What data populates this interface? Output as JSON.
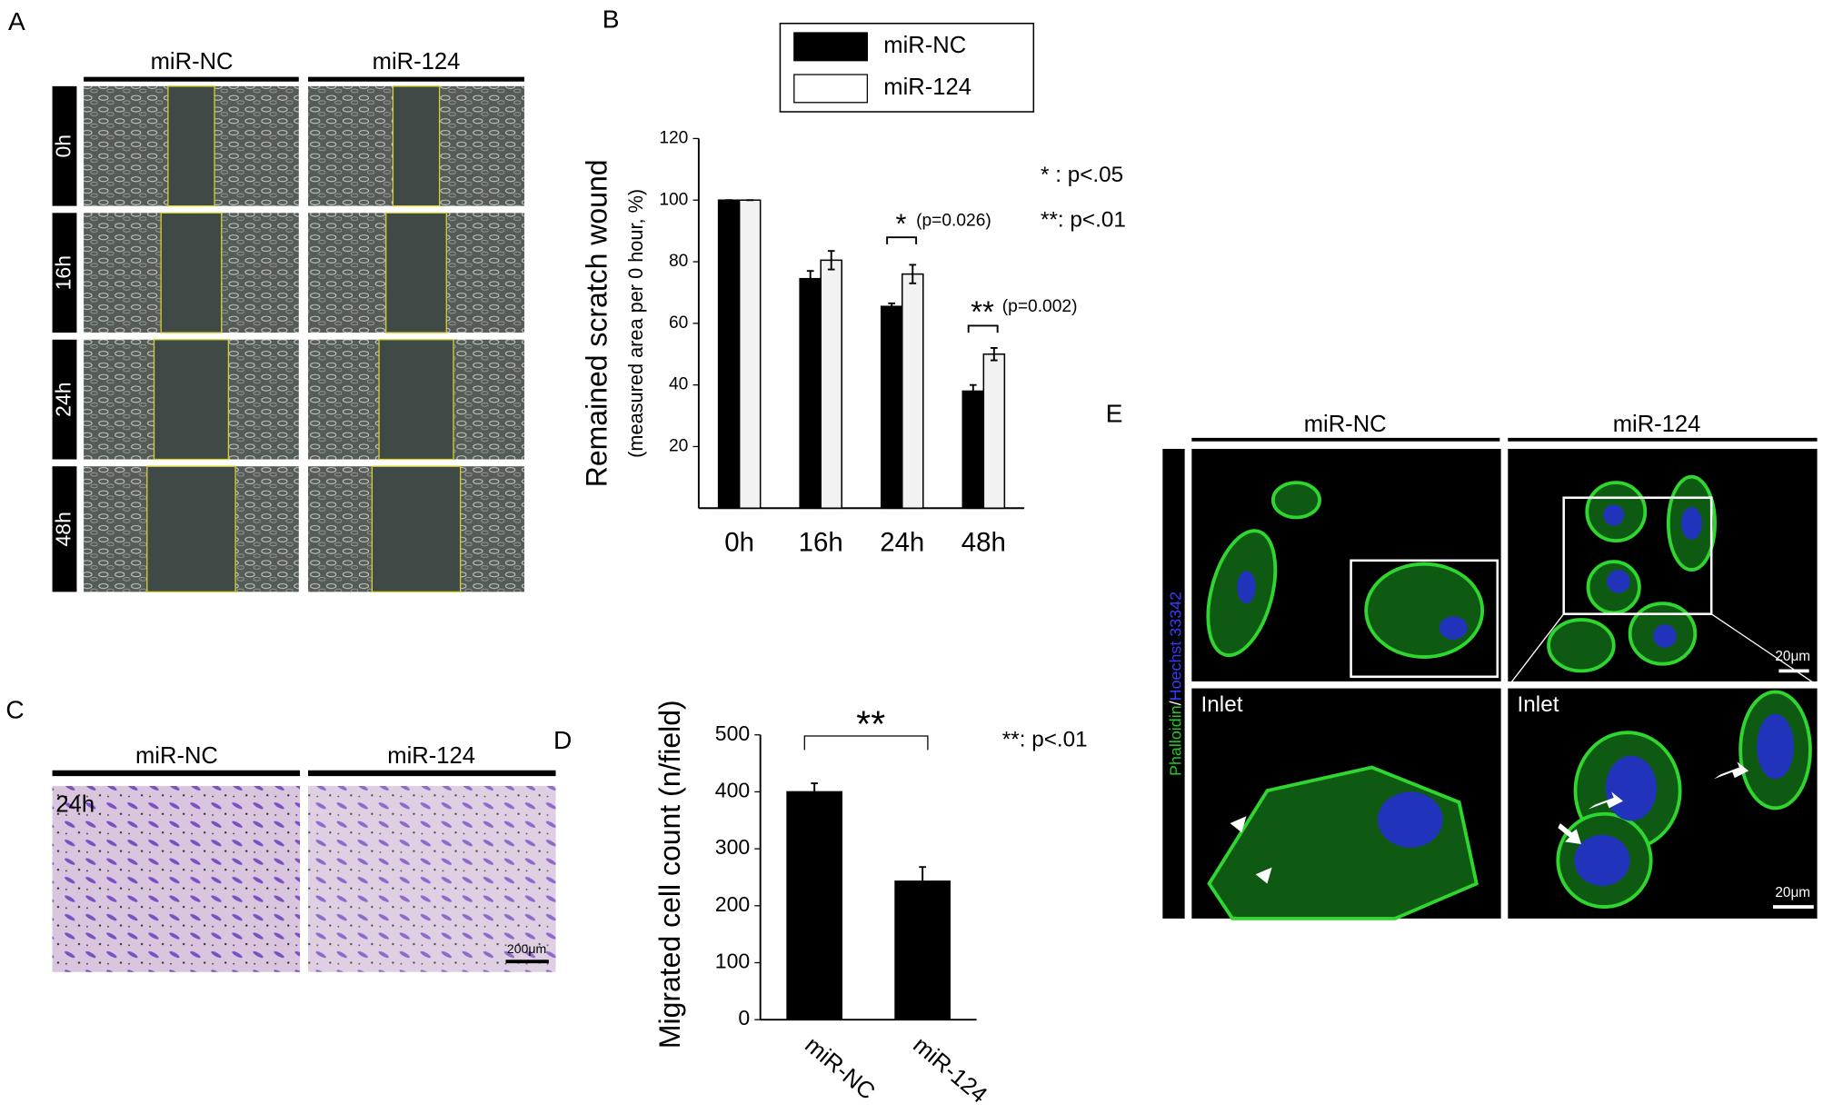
{
  "panels": {
    "labels": [
      "A",
      "B",
      "C",
      "D",
      "E"
    ],
    "panel_a": {
      "columns": [
        "miR-NC",
        "miR-124"
      ],
      "rows": [
        "0h",
        "16h",
        "24h",
        "48h"
      ]
    },
    "panel_c": {
      "columns": [
        "miR-NC",
        "miR-124"
      ],
      "time": "24h",
      "scale": "200μm"
    },
    "panel_e": {
      "columns": [
        "miR-NC",
        "miR-124"
      ],
      "stain_green": "Phalloidin",
      "separator": "/",
      "stain_blue": "Hoechst 33342",
      "inlet": "Inlet",
      "scale": "20μm"
    }
  },
  "chart_data": [
    {
      "type": "bar",
      "ylabel": [
        "Remained scratch wound",
        "(measured area per 0 hour, %)"
      ],
      "categories": [
        "0h",
        "16h",
        "24h",
        "48h"
      ],
      "series": [
        {
          "name": "miR-NC",
          "color": "#000000",
          "values": [
            100,
            74.5,
            65.5,
            38
          ],
          "errors": [
            0,
            2.5,
            1,
            2
          ]
        },
        {
          "name": "miR-124",
          "color": "#f2f2f2",
          "values": [
            100,
            80.5,
            76,
            50
          ],
          "errors": [
            0,
            3,
            3,
            2
          ]
        }
      ],
      "ylim": [
        0,
        120
      ],
      "yticks": [
        20,
        40,
        60,
        80,
        100,
        120
      ],
      "legend": "top",
      "annotations": [
        "*",
        "(p=0.026)",
        "**",
        "(p=0.002)"
      ],
      "notes": [
        "* : p<.05",
        "**: p<.01"
      ]
    },
    {
      "type": "bar",
      "ylabel": [
        "Migrated cell count (n/field)"
      ],
      "categories": [
        "miR-NC",
        "miR-124"
      ],
      "values": [
        400,
        243
      ],
      "errors": [
        15,
        25
      ],
      "color": "#000000",
      "ylim": [
        0,
        500
      ],
      "yticks": [
        0,
        100,
        200,
        300,
        400,
        500
      ],
      "annotations": [
        "**"
      ],
      "notes": [
        "**: p<.01"
      ]
    }
  ]
}
